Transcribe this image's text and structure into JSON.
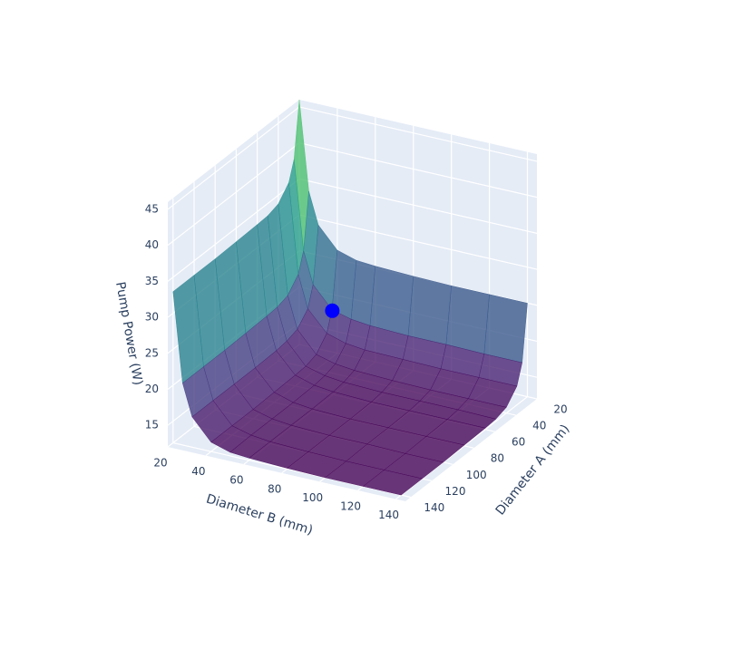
{
  "chart_data": {
    "type": "surface",
    "x_label": "Diameter A (mm)",
    "y_label": "Diameter B (mm)",
    "z_label": "Pump Power (W)",
    "x": [
      20,
      25,
      30,
      40,
      50,
      60,
      80,
      100,
      120,
      140
    ],
    "y": [
      20,
      25,
      30,
      40,
      50,
      60,
      80,
      100,
      120,
      140
    ],
    "z": [
      [
        46.0,
        33.6,
        29.2,
        26.3,
        25.5,
        25.3,
        25.1,
        25.0,
        25.0,
        25.0
      ],
      [
        38.3,
        25.9,
        21.5,
        18.6,
        17.9,
        17.6,
        17.4,
        17.4,
        17.3,
        17.3
      ],
      [
        35.6,
        23.2,
        18.7,
        15.9,
        15.1,
        14.8,
        14.7,
        14.6,
        14.6,
        14.6
      ],
      [
        33.8,
        21.4,
        17.0,
        14.1,
        13.4,
        13.1,
        12.9,
        12.8,
        12.8,
        12.8
      ],
      [
        33.3,
        20.9,
        16.5,
        13.6,
        12.9,
        12.6,
        12.4,
        12.4,
        12.4,
        12.3
      ],
      [
        33.2,
        20.8,
        16.3,
        13.5,
        12.7,
        12.4,
        12.2,
        12.2,
        12.2,
        12.2
      ],
      [
        33.1,
        20.7,
        16.2,
        13.4,
        12.6,
        12.3,
        12.1,
        12.1,
        12.1,
        12.1
      ],
      [
        33.0,
        20.6,
        16.2,
        13.3,
        12.6,
        12.3,
        12.1,
        12.1,
        12.0,
        12.0
      ],
      [
        33.0,
        20.6,
        16.2,
        13.3,
        12.6,
        12.3,
        12.1,
        12.0,
        12.0,
        12.0
      ],
      [
        33.0,
        20.6,
        16.2,
        13.3,
        12.5,
        12.3,
        12.1,
        12.0,
        12.0,
        12.0
      ]
    ],
    "colorscale": "Viridis",
    "opacity": 0.78,
    "marker": {
      "x": 32,
      "y": 44,
      "z": 19.5,
      "color": "#0000ff"
    },
    "xlim": [
      20,
      145
    ],
    "ylim": [
      20,
      145
    ],
    "zlim": [
      12,
      46
    ],
    "xticks": [
      20,
      40,
      60,
      80,
      100,
      120,
      140
    ],
    "yticks": [
      20,
      40,
      60,
      80,
      100,
      120,
      140
    ],
    "zticks": [
      15,
      20,
      25,
      30,
      35,
      40,
      45
    ],
    "grid": true
  }
}
